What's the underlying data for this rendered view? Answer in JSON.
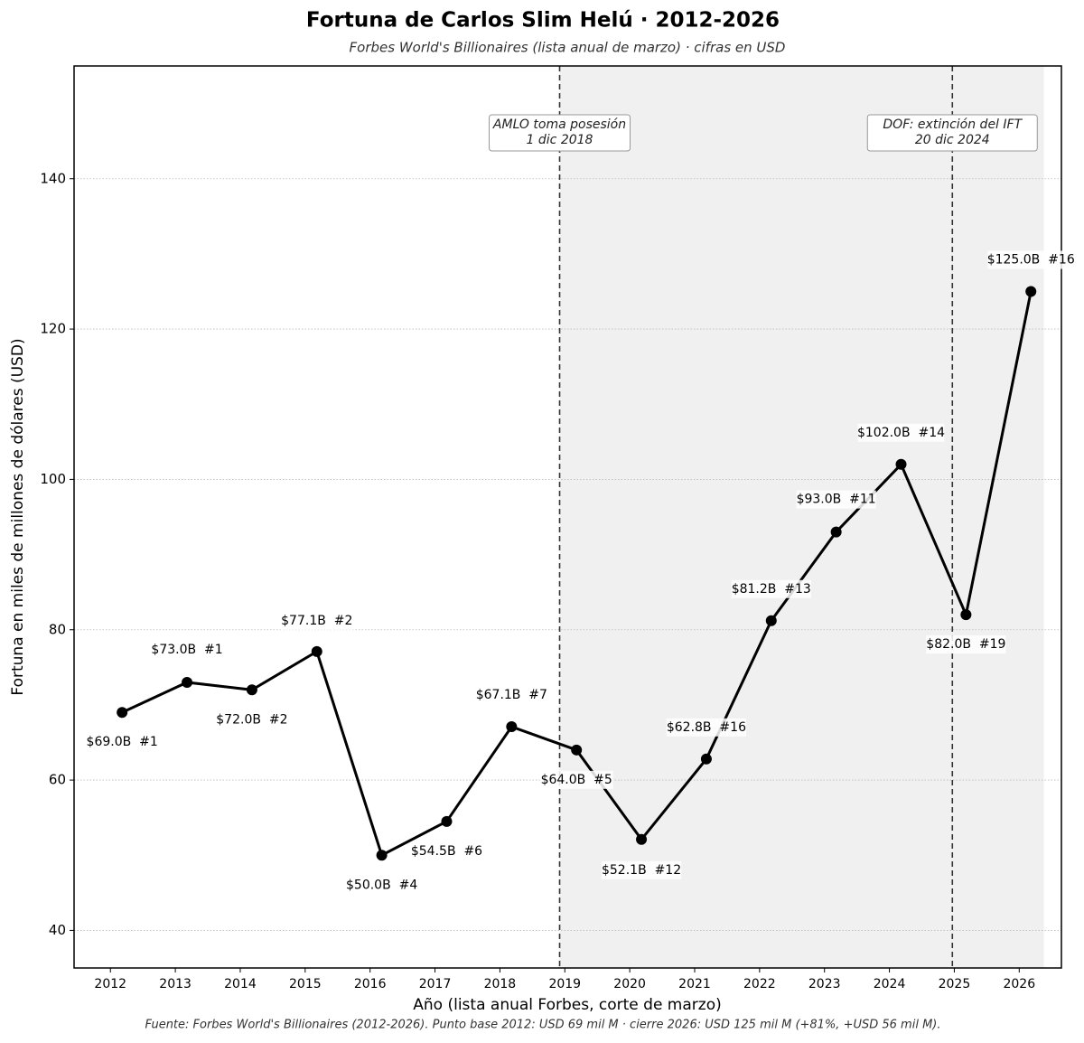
{
  "chart_data": {
    "type": "line",
    "title": "Fortuna de Carlos Slim Helú · 2012-2026",
    "subtitle": "Forbes World's Billionaires (lista anual de marzo) · cifras en USD",
    "xlabel": "Año (lista anual Forbes, corte de marzo)",
    "ylabel": "Fortuna en miles de millones de dólares (USD)",
    "source": "Fuente: Forbes World's Billionaires (2012-2026). Punto base 2012: USD 69 mil M · cierre 2026: USD 125 mil M (+81%, +USD 56 mil M).",
    "x": [
      2012.18,
      2013.18,
      2014.18,
      2015.18,
      2016.18,
      2017.18,
      2018.18,
      2019.18,
      2020.18,
      2021.18,
      2022.18,
      2023.18,
      2024.18,
      2025.18,
      2026.18
    ],
    "series": [
      {
        "name": "Fortuna",
        "color": "#000000",
        "values": [
          69.0,
          73.0,
          72.0,
          77.1,
          50.0,
          54.5,
          67.1,
          64.0,
          52.1,
          62.8,
          81.2,
          93.0,
          102.0,
          82.0,
          125.0
        ],
        "value_labels": [
          "$69.0B  #1",
          "$73.0B  #1",
          "$72.0B  #2",
          "$77.1B  #2",
          "$50.0B  #4",
          "$54.5B  #6",
          "$67.1B  #7",
          "$64.0B  #5",
          "$52.1B  #12",
          "$62.8B  #16",
          "$81.2B  #13",
          "$93.0B  #11",
          "$102.0B  #14",
          "$82.0B  #19",
          "$125.0B  #16"
        ]
      }
    ],
    "xlim": [
      2011.44,
      2026.65
    ],
    "xticks": [
      2012,
      2013,
      2014,
      2015,
      2016,
      2017,
      2018,
      2019,
      2020,
      2021,
      2022,
      2023,
      2024,
      2025,
      2026
    ],
    "ylim": [
      35,
      155
    ],
    "yticks": [
      40,
      60,
      80,
      100,
      120,
      140
    ],
    "grid": true,
    "shaded_span": [
      2018.92,
      2026.38
    ],
    "annotations": [
      {
        "x": 2018.92,
        "lines": [
          "AMLO toma posesión",
          "1 dic 2018"
        ]
      },
      {
        "x": 2024.97,
        "lines": [
          "DOF: extinción del IFT",
          "20 dic 2024"
        ]
      }
    ]
  }
}
